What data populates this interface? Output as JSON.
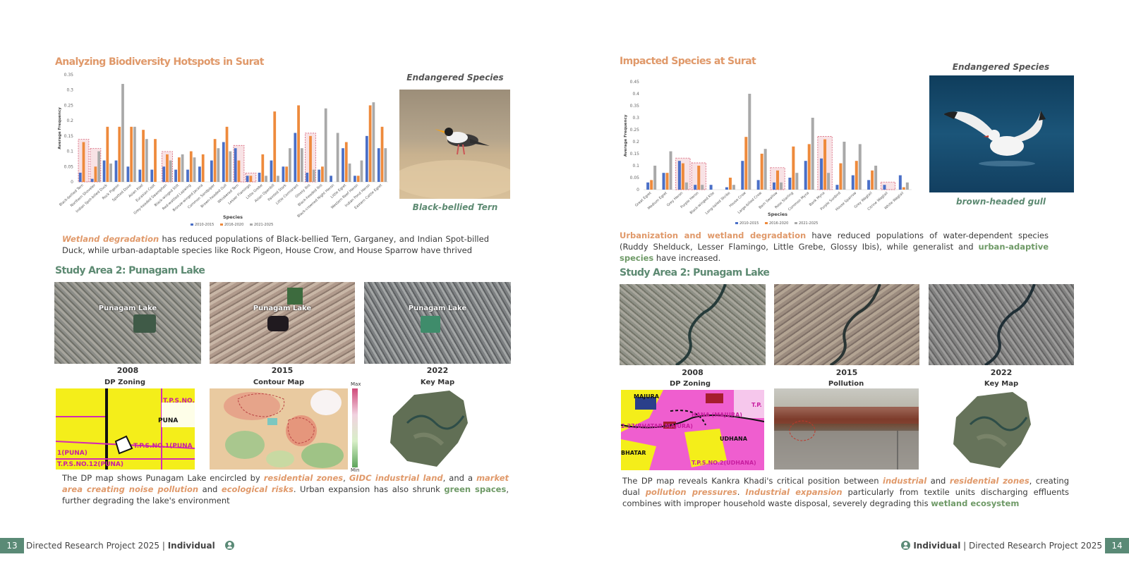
{
  "left": {
    "title": "Analyzing Biodiversity Hotspots in Surat",
    "endangered_label": "Endangered Species",
    "species_name": "Black-bellied Tern",
    "para1": {
      "t1": "Wetland degradation",
      "t2": " has reduced populations of Black-bellied Tern, Garganey, and Indian Spot-billed Duck, while urban-adaptable species like Rock Pigeon,  House Crow, and House Sparrow have thrived"
    },
    "study_title": "Study Area 2: Punagam Lake",
    "lake_label": "Punagam Lake",
    "years": [
      "2008",
      "2015",
      "2022"
    ],
    "maps": [
      "DP Zoning",
      "Contour Map",
      "Key Map"
    ],
    "legend_max": "Max",
    "legend_min": "Min",
    "dp_labels": [
      "T.P.S.NO.60(PU",
      "PUNA",
      "T.P.S.NO.1(PUNA",
      "1(PUNA)",
      "T.P.S.NO.12(PUNA)"
    ],
    "para2": {
      "t1": "The DP map shows Punagam Lake encircled by ",
      "t2": "residential zones",
      "t3": ", ",
      "t4": "GIDC industrial land",
      "t5": ", and a ",
      "t6": "market area creating noise pollution",
      "t7": " and ",
      "t8": "ecological risks",
      "t9": ". Urban expansion has also shrunk ",
      "t10": "green spaces",
      "t11": ", further degrading  the lake's environment"
    },
    "footer": {
      "num": "13",
      "text": "Directed Research Project 2025 | ",
      "bold": "Individual"
    }
  },
  "right": {
    "title": "Impacted Species at Surat",
    "endangered_label": "Endangered Species",
    "species_name": "brown-headed  gull",
    "para1": {
      "t1": "Urbanization and wetland degradation",
      "t2": " have reduced populations of water-dependent species (Ruddy Shelduck, Lesser Flamingo, Little Grebe, Glossy Ibis), while generalist and ",
      "t3": "urban-adaptive species",
      "t4": " have increased."
    },
    "study_title": "Study Area 2: Punagam Lake",
    "years": [
      "2008",
      "2015",
      "2022"
    ],
    "maps": [
      "DP Zoning",
      "Pollution",
      "Key Map"
    ],
    "dp_labels": [
      "MAJURA",
      "HANA (MAJURA)",
      "T.P.",
      "2.27(BHATAR-MAJURA)",
      "UDHANA",
      "BHATAR",
      "T.P.S.NO.2(UDHANA)"
    ],
    "para2": {
      "t1": "The DP map reveals Kankra Khadi's critical position between ",
      "t2": "industrial",
      "t3": " and ",
      "t4": "residential zones",
      "t5": ", creating dual ",
      "t6": "pollution pressures",
      "t7": ". ",
      "t8": "Industrial expansion",
      "t9": " particularly from textile units discharging effluents combines with improper household waste disposal, severely degrading  this ",
      "t10": "wetland ecosystem"
    },
    "footer": {
      "num": "14",
      "text": " | Directed Research Project 2025",
      "bold": "Individual"
    }
  },
  "colors": {
    "s2010": "#4a6fc7",
    "s2016": "#ee8a3c",
    "s2021": "#a9a9a9",
    "highlight": "#e8a0a8"
  },
  "chart_data": [
    {
      "type": "bar",
      "xlabel": "Species",
      "ylabel": "Average Frequency",
      "ylim": [
        0,
        0.35
      ],
      "yticks": [
        "0",
        "0.05",
        "0.1",
        "0.15",
        "0.2",
        "0.25",
        "0.3",
        "0.35"
      ],
      "legend": "bottom",
      "categories": [
        "Black-bellied Tern",
        "Northern Shoveler",
        "Indian Spot-billed Duck",
        "Rock Pigeon",
        "Spotted Dove",
        "Asian Koel",
        "Eurasian Coot",
        "Grey-headed Swamphen",
        "Black-winged Stilt",
        "Red-wattled Lapwing",
        "Bronze-winged Jacana",
        "Common Sandpiper",
        "Brown-headed Gull",
        "Whiskered Tern",
        "Lesser Flamingo",
        "Little Grebe",
        "Asian Openbill",
        "Painted Stork",
        "Little Cormorant",
        "Glossy Ibis",
        "Black-headed Ibis",
        "Black-crowned Night Heron",
        "Little Egret",
        "Western Reef Heron",
        "Indian Pond Heron",
        "Eastern Cattle Egret"
      ],
      "highlight": [
        0,
        1,
        7,
        13,
        14,
        19
      ],
      "series": [
        {
          "name": "2010-2015",
          "values": [
            0.03,
            0.01,
            0.07,
            0.07,
            0.05,
            0.04,
            0.04,
            0.05,
            0.04,
            0.04,
            0.05,
            0.07,
            0.13,
            0.11,
            0.02,
            0.03,
            0.07,
            0.05,
            0.16,
            0.03,
            0.04,
            0.02,
            0.11,
            0.02,
            0.15,
            0.11
          ]
        },
        {
          "name": "2016-2020",
          "values": [
            0.13,
            0.05,
            0.18,
            0.18,
            0.18,
            0.17,
            0.14,
            0.09,
            0.08,
            0.1,
            0.09,
            0.14,
            0.18,
            0.07,
            0.02,
            0.09,
            0.23,
            0.05,
            0.25,
            0.15,
            0.05,
            0.0,
            0.13,
            0.02,
            0.25,
            0.18
          ]
        },
        {
          "name": "2021-2025",
          "values": [
            0.0,
            0.1,
            0.06,
            0.32,
            0.18,
            0.14,
            0.0,
            0.07,
            0.09,
            0.08,
            0.0,
            0.11,
            0.1,
            0.0,
            0.0,
            0.02,
            0.02,
            0.11,
            0.11,
            0.04,
            0.24,
            0.16,
            0.06,
            0.07,
            0.26,
            0.11
          ]
        }
      ]
    },
    {
      "type": "bar",
      "xlabel": "Species",
      "ylabel": "Average Frequency",
      "ylim": [
        0,
        0.45
      ],
      "yticks": [
        "0",
        "0.05",
        "0.1",
        "0.15",
        "0.2",
        "0.25",
        "0.3",
        "0.35",
        "0.4",
        "0.45"
      ],
      "legend": "bottom",
      "categories": [
        "Great Egret",
        "Medium Egret",
        "Grey Heron",
        "Purple Heron",
        "Black-winged Kite",
        "Long-tailed Shrike",
        "House Crow",
        "Large-billed Crow",
        "Barn Swallow",
        "Rose Starling",
        "Common Myna",
        "Bank Myna",
        "Purple Sunbird",
        "House Sparrow",
        "Grey Wagtail",
        "Citrine Wagtail",
        "White Wagtail"
      ],
      "highlight": [
        2,
        3,
        8,
        11,
        15
      ],
      "series": [
        {
          "name": "2010-2015",
          "values": [
            0.03,
            0.07,
            0.12,
            0.02,
            0.02,
            0.01,
            0.12,
            0.04,
            0.03,
            0.05,
            0.12,
            0.13,
            0.02,
            0.06,
            0.04,
            0.02,
            0.06
          ]
        },
        {
          "name": "2016-2020",
          "values": [
            0.04,
            0.07,
            0.11,
            0.1,
            0.0,
            0.05,
            0.22,
            0.15,
            0.08,
            0.18,
            0.19,
            0.21,
            0.11,
            0.12,
            0.08,
            0.0,
            0.01
          ]
        },
        {
          "name": "2021-2025",
          "values": [
            0.1,
            0.16,
            0.03,
            0.02,
            0.0,
            0.02,
            0.4,
            0.17,
            0.03,
            0.07,
            0.3,
            0.07,
            0.2,
            0.19,
            0.1,
            0.0,
            0.03
          ]
        }
      ]
    }
  ]
}
